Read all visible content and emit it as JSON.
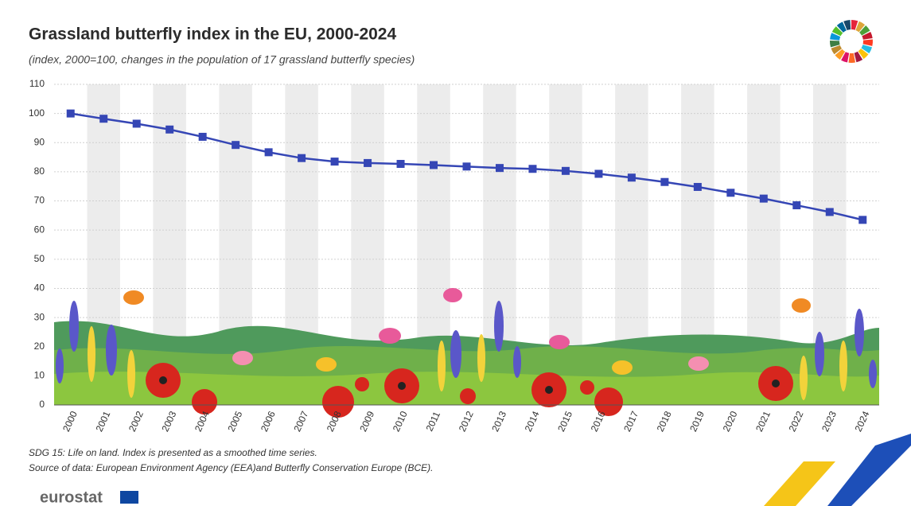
{
  "chart_data": {
    "type": "line",
    "title": "Grassland butterfly index in the EU, 2000-2024",
    "subtitle": "(index, 2000=100, changes in the population of 17 grassland butterfly species)",
    "categories": [
      "2000",
      "2001",
      "2002",
      "2003",
      "2004",
      "2005",
      "2006",
      "2007",
      "2008",
      "2009",
      "2010",
      "2011",
      "2012",
      "2013",
      "2014",
      "2015",
      "2016",
      "2017",
      "2018",
      "2019",
      "2020",
      "2021",
      "2022",
      "2023",
      "2024"
    ],
    "series": [
      {
        "name": "Grassland butterfly index",
        "color": "#3546b5",
        "values": [
          100,
          98.2,
          96.5,
          94.5,
          92,
          89.2,
          86.7,
          84.7,
          83.5,
          83,
          82.7,
          82.3,
          81.8,
          81.3,
          81,
          80.3,
          79.3,
          78,
          76.5,
          74.8,
          72.8,
          70.8,
          68.5,
          66.2,
          63.5
        ]
      }
    ],
    "ylim": [
      0,
      110
    ],
    "yticks": [
      0,
      10,
      20,
      30,
      40,
      50,
      60,
      70,
      80,
      90,
      100,
      110
    ],
    "grid": true,
    "notes": [
      "SDG 15: Life on land.  Index is presented as a smoothed time series.",
      "Source of data: European Environment Agency (EEA)and Butterfly Conservation Europe (BCE)."
    ]
  },
  "brand": "eurostat"
}
